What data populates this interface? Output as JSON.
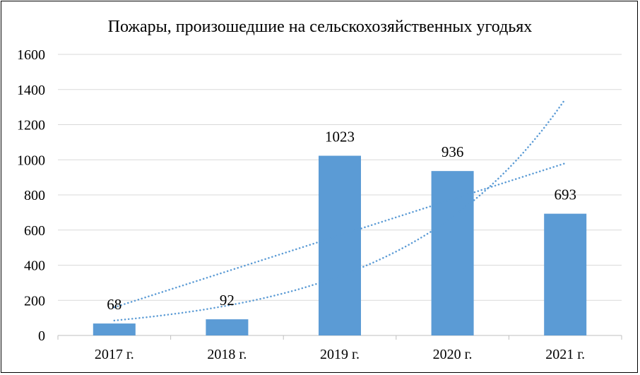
{
  "chart_data": {
    "type": "bar",
    "title": "Пожары, произошедшие на сельскохозяйственных  угодьях",
    "categories": [
      "2017 г.",
      "2018 г.",
      "2019 г.",
      "2020 г.",
      "2021 г."
    ],
    "values": [
      68,
      92,
      1023,
      936,
      693
    ],
    "data_labels": [
      "68",
      "92",
      "1023",
      "936",
      "693"
    ],
    "ylim": [
      0,
      1600
    ],
    "yticks": [
      0,
      200,
      400,
      600,
      800,
      1000,
      1200,
      1400,
      1600
    ],
    "ytick_labels": [
      "0",
      "200",
      "400",
      "600",
      "800",
      "1000",
      "1200",
      "1400",
      "1600"
    ],
    "grid": true,
    "legend": "none",
    "trendlines": [
      {
        "kind": "linear",
        "style": "dotted",
        "start": 160,
        "end": 980
      },
      {
        "kind": "exponential",
        "style": "dotted",
        "start": 85,
        "end": 1345
      }
    ],
    "colors": {
      "bar": "#5b9bd5",
      "trendline": "#5b9bd5",
      "grid": "#d9d9d9",
      "axis": "#bfbfbf",
      "text": "#000000"
    }
  }
}
